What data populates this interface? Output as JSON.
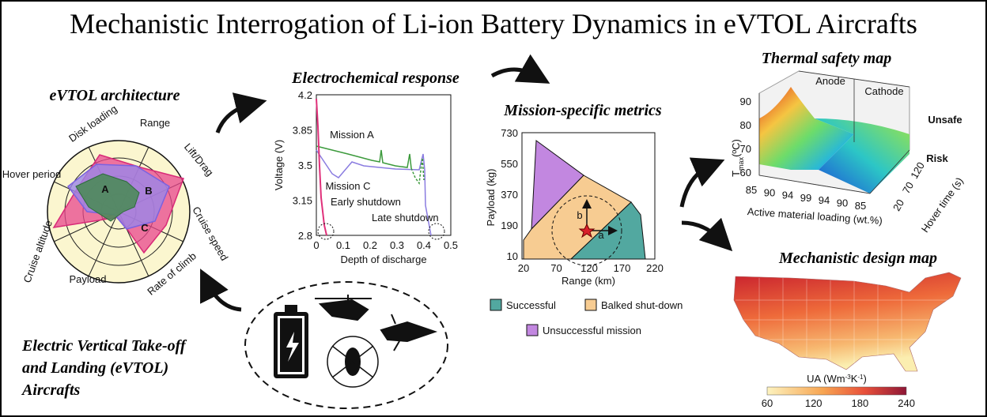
{
  "title": "Mechanistic Interrogation of Li-ion Battery Dynamics in eVTOL Aircrafts",
  "radar": {
    "title": "eVTOL architecture",
    "axes": [
      "Disk loading",
      "Range",
      "Lift/Drag",
      "Cruise speed",
      "Rate of climb",
      "Payload",
      "Cruise altitude",
      "Hover period"
    ],
    "series": [
      "A",
      "B",
      "C"
    ]
  },
  "electrochemical": {
    "title": "Electrochemical response",
    "x_label": "Depth of discharge",
    "y_label": "Voltage (V)",
    "xticks": [
      0,
      0.1,
      0.2,
      0.3,
      0.4,
      0.5
    ],
    "yticks": [
      4.2,
      3.85,
      3.5,
      3.15,
      2.8
    ],
    "annotations": [
      "Mission A",
      "Mission C",
      "Early shutdown",
      "Late shutdown"
    ]
  },
  "metrics": {
    "title": "Mission-specific metrics",
    "x_label": "Range (km)",
    "y_label": "Payload (kg)",
    "xticks": [
      20,
      70,
      120,
      170,
      220
    ],
    "yticks": [
      730,
      550,
      370,
      190,
      10
    ],
    "vectors": [
      "a",
      "b"
    ],
    "legend": [
      "Successful",
      "Balked shut-down",
      "Unsuccessful mission"
    ]
  },
  "thermal": {
    "title": "Thermal safety map",
    "z_label": {
      "base": "T",
      "sub": "max",
      "unit": "(ºC)"
    },
    "zticks": [
      90,
      80,
      70,
      60
    ],
    "regions": [
      "Anode",
      "Cathode"
    ],
    "levels": [
      "Unsafe",
      "Risk"
    ],
    "xticks": [
      85,
      90,
      94,
      99,
      94,
      90,
      85
    ],
    "x_label": "Active material loading (wt.%)",
    "yticks": [
      20,
      70,
      120
    ],
    "y_label": "Hover time (s)"
  },
  "design_map": {
    "title": "Mechanistic design map",
    "colorbar_label": {
      "base": "UA (Wm",
      "sup": "-3",
      "mid": "K",
      "sup2": "-1",
      "end": ")"
    },
    "colorbar_ticks": [
      60,
      120,
      180,
      240
    ]
  },
  "caption": [
    "Electric Vertical Take-off",
    "and Landing (eVTOL)",
    "Aircrafts"
  ]
}
